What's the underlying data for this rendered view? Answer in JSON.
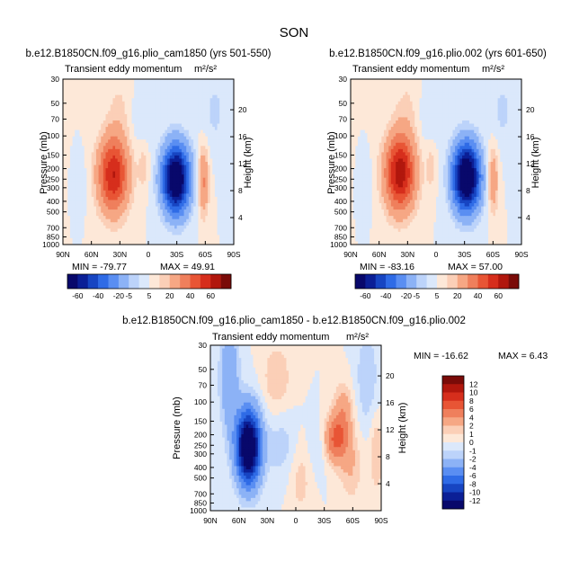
{
  "season": "SON",
  "chart_data": [
    {
      "type": "heatmap",
      "title": "b.e12.B1850CN.f09_g16.plio_cam1850 (yrs 501-550)",
      "subtitle": "Transient eddy momentum",
      "units": "m²/s²",
      "xlabel": "",
      "ylabel": "Pressure (mb)",
      "y2label": "Height (km)",
      "x_ticks": [
        "90N",
        "60N",
        "30N",
        "0",
        "30S",
        "60S",
        "90S"
      ],
      "y_ticks": [
        "30",
        "50",
        "70",
        "100",
        "150",
        "200",
        "250",
        "300",
        "400",
        "500",
        "700",
        "850",
        "1000"
      ],
      "y2_ticks": [
        "20",
        "16",
        "12",
        "8",
        "4"
      ],
      "min_label": "MIN = -79.77",
      "max_label": "MAX = 49.91",
      "colorbar_labels": [
        "-60",
        "-40",
        "-20",
        "-5",
        "5",
        "20",
        "40",
        "60"
      ],
      "features": [
        {
          "lat": 37,
          "p": 230,
          "value": 49.91,
          "sx": 11,
          "sy": 0.55
        },
        {
          "lat": -29,
          "p": 250,
          "value": -79.77,
          "sx": 10,
          "sy": 0.5
        },
        {
          "lat": 5,
          "p": 190,
          "value": 8,
          "sx": 4,
          "sy": 0.35
        },
        {
          "lat": -58,
          "p": 260,
          "value": 22,
          "sx": 4,
          "sy": 0.5
        },
        {
          "lat": 30,
          "p": 60,
          "value": 6,
          "sx": 10,
          "sy": 0.6
        },
        {
          "lat": -70,
          "p": 60,
          "value": -6,
          "sx": 10,
          "sy": 0.6
        },
        {
          "lat": 10,
          "p": 70,
          "value": -4,
          "sx": 10,
          "sy": 0.5
        },
        {
          "lat": 70,
          "p": 270,
          "value": -3,
          "sx": 4,
          "sy": 0.4
        }
      ]
    },
    {
      "type": "heatmap",
      "title": "b.e12.B1850CN.f09_g16.plio.002 (yrs 601-650)",
      "subtitle": "Transient eddy momentum",
      "units": "m²/s²",
      "xlabel": "",
      "ylabel": "Pressure (mb)",
      "y2label": "Height (km)",
      "x_ticks": [
        "90N",
        "60N",
        "30N",
        "0",
        "30S",
        "60S",
        "90S"
      ],
      "y_ticks": [
        "30",
        "50",
        "70",
        "100",
        "150",
        "200",
        "250",
        "300",
        "400",
        "500",
        "700",
        "850",
        "1000"
      ],
      "y2_ticks": [
        "20",
        "16",
        "12",
        "8",
        "4"
      ],
      "min_label": "MIN = -83.16",
      "max_label": "MAX = 57.00",
      "colorbar_labels": [
        "-60",
        "-40",
        "-20",
        "-5",
        "5",
        "20",
        "40",
        "60"
      ],
      "features": [
        {
          "lat": 38,
          "p": 220,
          "value": 57.0,
          "sx": 11,
          "sy": 0.55
        },
        {
          "lat": -32,
          "p": 240,
          "value": -83.16,
          "sx": 10,
          "sy": 0.5
        },
        {
          "lat": 5,
          "p": 190,
          "value": 8,
          "sx": 4,
          "sy": 0.35
        },
        {
          "lat": -60,
          "p": 250,
          "value": 18,
          "sx": 4,
          "sy": 0.5
        },
        {
          "lat": 30,
          "p": 60,
          "value": 6,
          "sx": 10,
          "sy": 0.6
        },
        {
          "lat": -70,
          "p": 60,
          "value": -6,
          "sx": 10,
          "sy": 0.6
        },
        {
          "lat": 10,
          "p": 70,
          "value": -4,
          "sx": 10,
          "sy": 0.5
        },
        {
          "lat": 72,
          "p": 270,
          "value": -3,
          "sx": 4,
          "sy": 0.4
        }
      ]
    },
    {
      "type": "heatmap",
      "title": "b.e12.B1850CN.f09_g16.plio_cam1850 - b.e12.B1850CN.f09_g16.plio.002",
      "subtitle": "Transient eddy momentum",
      "units": "m²/s²",
      "xlabel": "",
      "ylabel": "Pressure (mb)",
      "y2label": "Height (km)",
      "x_ticks": [
        "90N",
        "60N",
        "30N",
        "0",
        "30S",
        "60S",
        "90S"
      ],
      "y_ticks": [
        "30",
        "50",
        "70",
        "100",
        "150",
        "200",
        "250",
        "300",
        "400",
        "500",
        "700",
        "850",
        "1000"
      ],
      "y2_ticks": [
        "20",
        "16",
        "12",
        "8",
        "4"
      ],
      "min_label": "MIN = -16.62",
      "max_label": "MAX =  6.43",
      "colorbar_labels": [
        "12",
        "10",
        "8",
        "6",
        "4",
        "2",
        "1",
        "0",
        "-1",
        "-2",
        "-4",
        "-6",
        "-8",
        "-10",
        "-12"
      ],
      "features": [
        {
          "lat": 50,
          "p": 260,
          "value": -16.62,
          "sx": 9,
          "sy": 0.55
        },
        {
          "lat": 70,
          "p": 60,
          "value": -4,
          "sx": 7,
          "sy": 0.8
        },
        {
          "lat": -42,
          "p": 220,
          "value": 6.43,
          "sx": 9,
          "sy": 0.35
        },
        {
          "lat": -50,
          "p": 120,
          "value": 3,
          "sx": 7,
          "sy": 0.4
        },
        {
          "lat": -58,
          "p": 400,
          "value": 2,
          "sx": 8,
          "sy": 0.5
        },
        {
          "lat": -5,
          "p": 500,
          "value": 1.5,
          "sx": 8,
          "sy": 0.6
        },
        {
          "lat": 15,
          "p": 250,
          "value": -1.5,
          "sx": 12,
          "sy": 0.5
        },
        {
          "lat": -25,
          "p": 250,
          "value": -1.5,
          "sx": 8,
          "sy": 0.4
        },
        {
          "lat": 20,
          "p": 60,
          "value": 2,
          "sx": 10,
          "sy": 0.5
        },
        {
          "lat": -75,
          "p": 60,
          "value": -2,
          "sx": 8,
          "sy": 0.7
        },
        {
          "lat": -85,
          "p": 300,
          "value": 2,
          "sx": 5,
          "sy": 0.6
        }
      ]
    }
  ],
  "colors": {
    "scale_a": [
      "#08086b",
      "#0b1f96",
      "#1745c2",
      "#2f6be6",
      "#5a8ef2",
      "#8cb2f6",
      "#bcd3fa",
      "#dbe8fb",
      "#fde8d8",
      "#fbcfb7",
      "#f6a784",
      "#ef7f5c",
      "#e85535",
      "#d62e1c",
      "#b1170d",
      "#7a0b08"
    ],
    "scale_b": [
      "#7a0b08",
      "#b1170d",
      "#d62e1c",
      "#e85535",
      "#ef7f5c",
      "#f6a784",
      "#fbcfb7",
      "#fde8d8",
      "#dbe8fb",
      "#bcd3fa",
      "#8cb2f6",
      "#5a8ef2",
      "#2f6be6",
      "#1745c2",
      "#0b1f96",
      "#08086b"
    ]
  }
}
